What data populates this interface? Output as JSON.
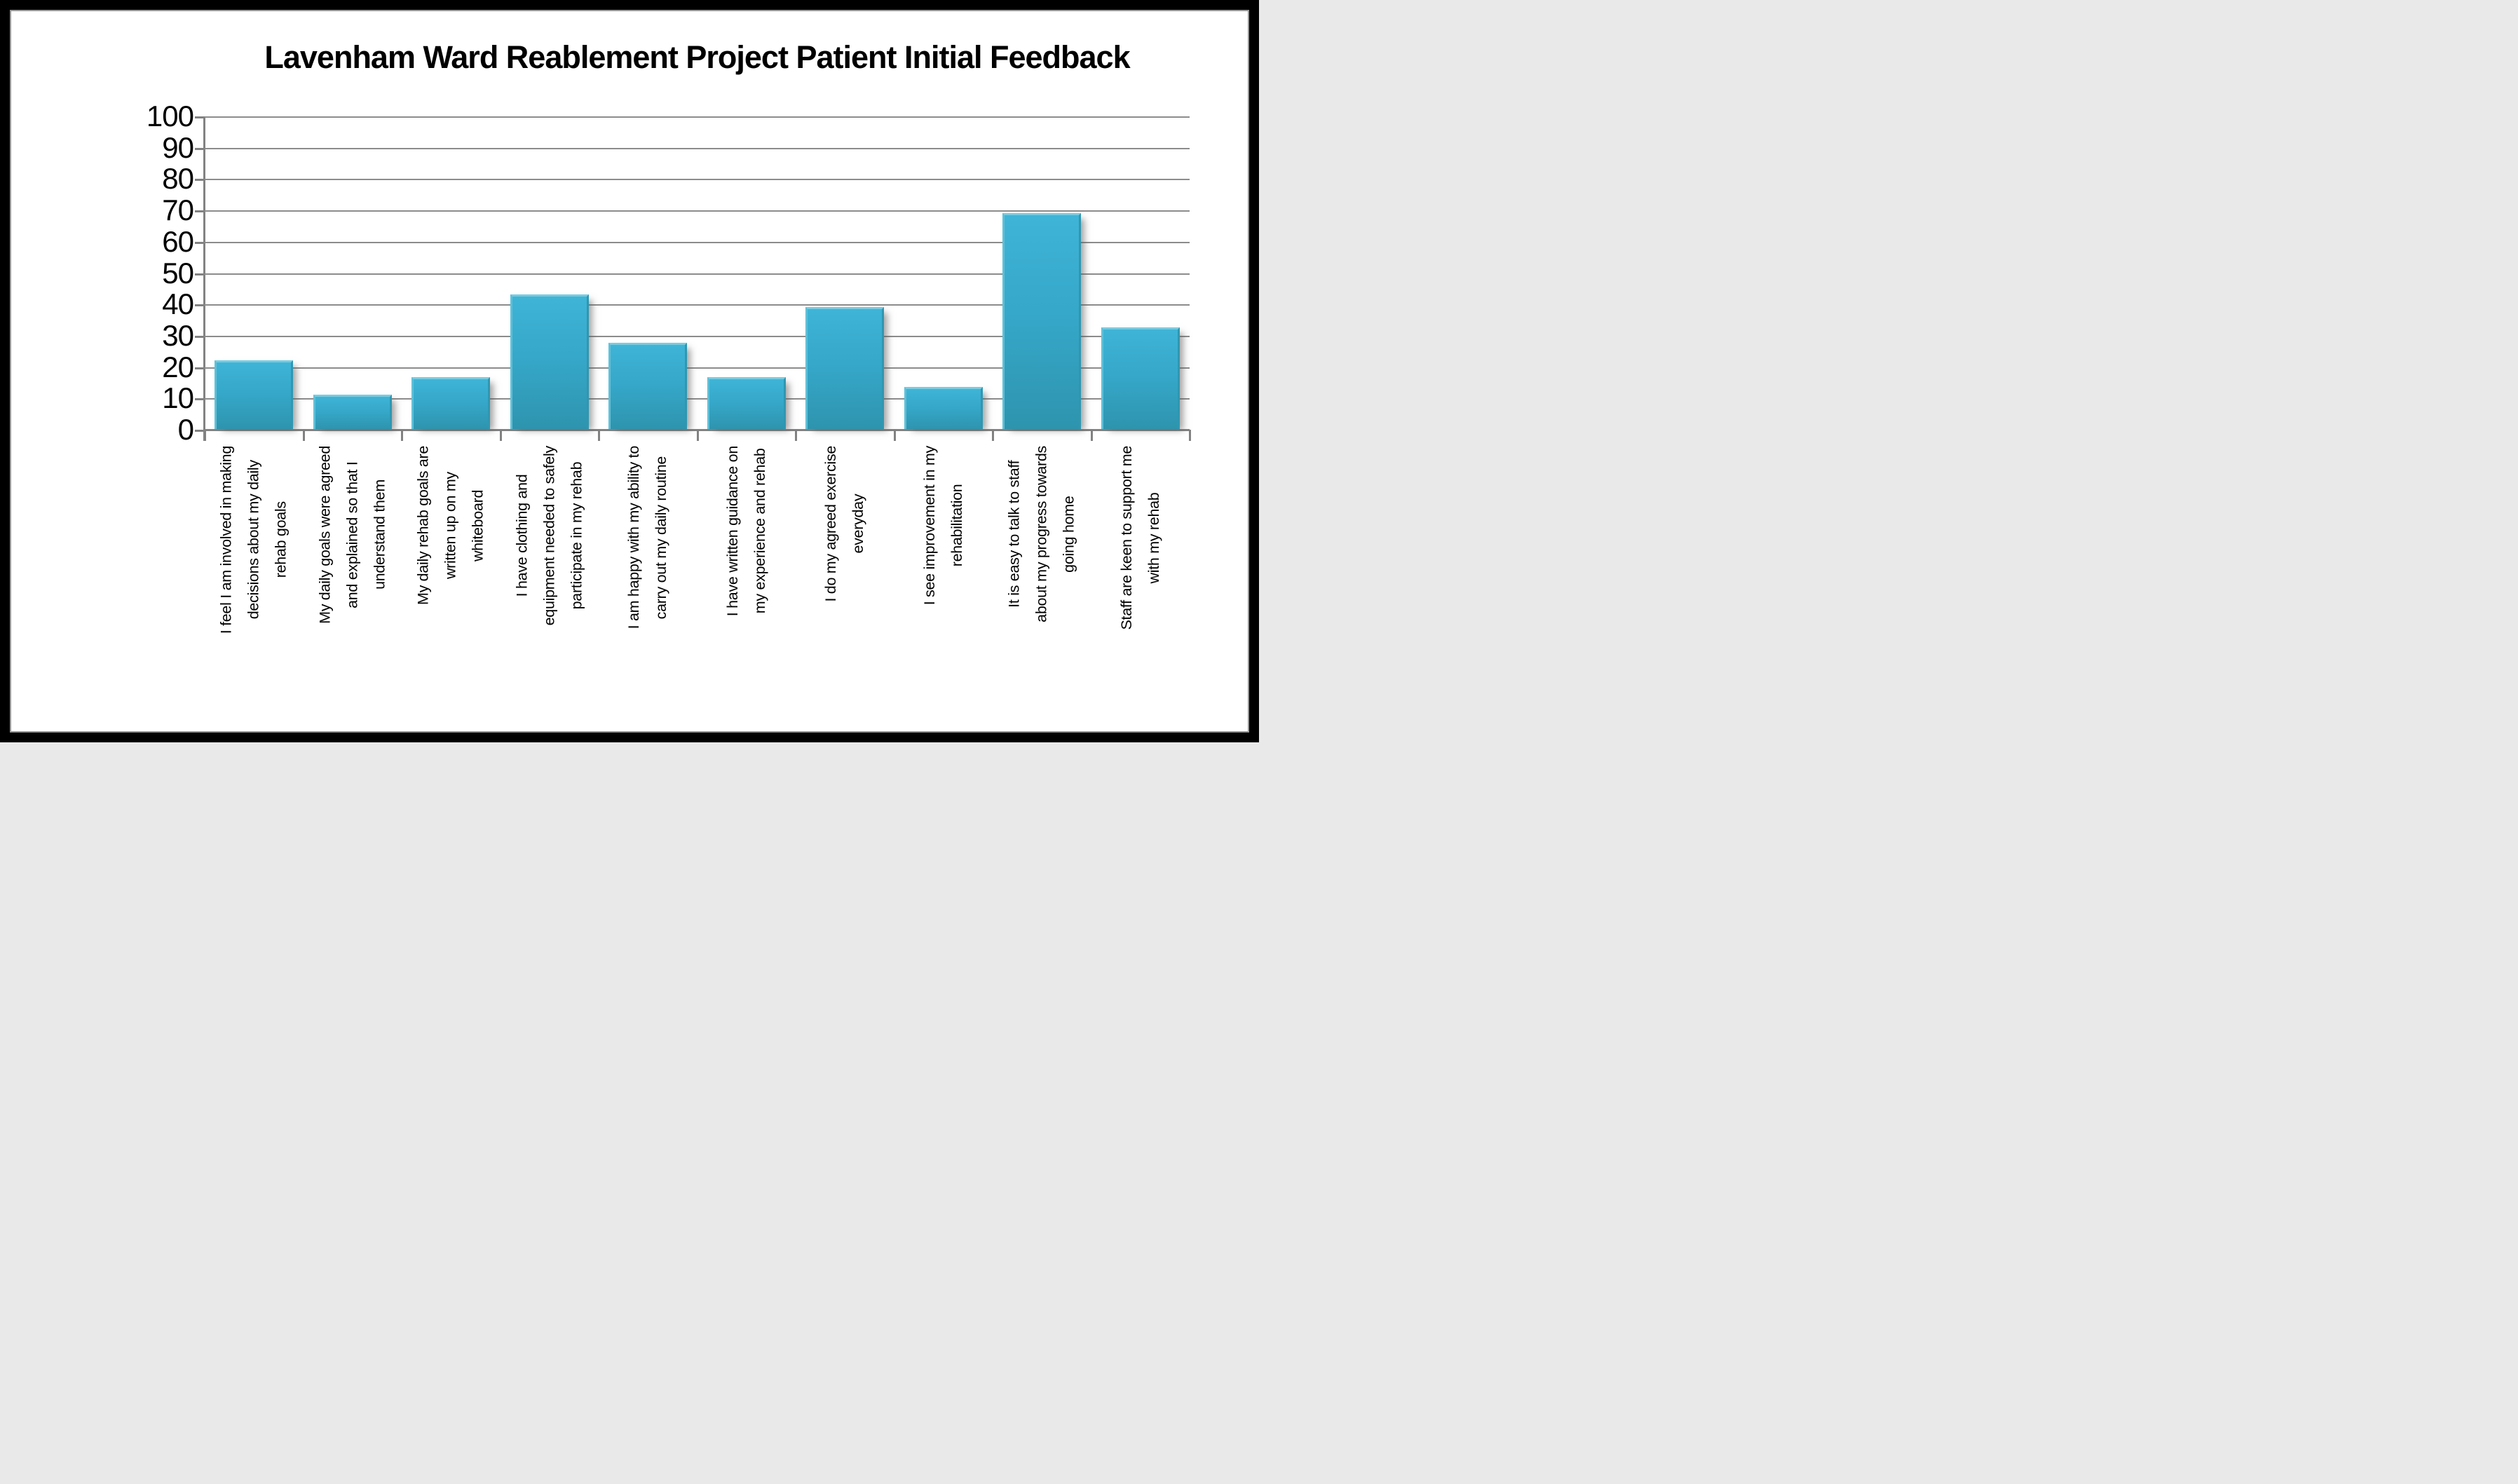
{
  "title": "Lavenham Ward Reablement Project Patient Initial Feedback",
  "chart_data": {
    "type": "bar",
    "title": "Lavenham Ward Reablement Project Patient Initial Feedback",
    "categories": [
      "I feel I am involved in making\ndecisions about my daily\nrehab goals",
      "My daily goals were agreed\nand explained so that I\nunderstand them",
      "My daily rehab goals are\nwritten up on my\nwhiteboard",
      "I have clothing and\nequipment needed to safely\nparticipate in my rehab",
      "I am happy with my ability to\ncarry out my daily routine",
      "I have written guidance on\nmy experience and rehab",
      "I do my agreed exercise\neveryday",
      "I see improvement in my\nrehabilitation",
      "It is easy to talk to staff\nabout my progress towards\ngoing home",
      "Staff are keen to support me\nwith my rehab"
    ],
    "values": [
      22,
      11,
      16.5,
      43,
      27.5,
      16.5,
      39,
      13.5,
      69,
      32.5
    ],
    "xlabel": "",
    "ylabel": "",
    "ylim": [
      0,
      100
    ],
    "ytick_step": 10,
    "yticks": [
      "100",
      "90",
      "80",
      "70",
      "60",
      "50",
      "40",
      "30",
      "20",
      "10",
      "0"
    ],
    "grid": "horizontal",
    "legend": "none",
    "bar_color_top": "#3fb4d6",
    "bar_color_bottom": "#2e94ae",
    "bar_highlight": "#7acbdf",
    "gridline_color": "#8c8c8c",
    "axis_color": "#828282",
    "text_color": "#000000",
    "background_color": "#ffffff",
    "outer_border_color": "#000000",
    "inner_border_color": "#999999"
  }
}
